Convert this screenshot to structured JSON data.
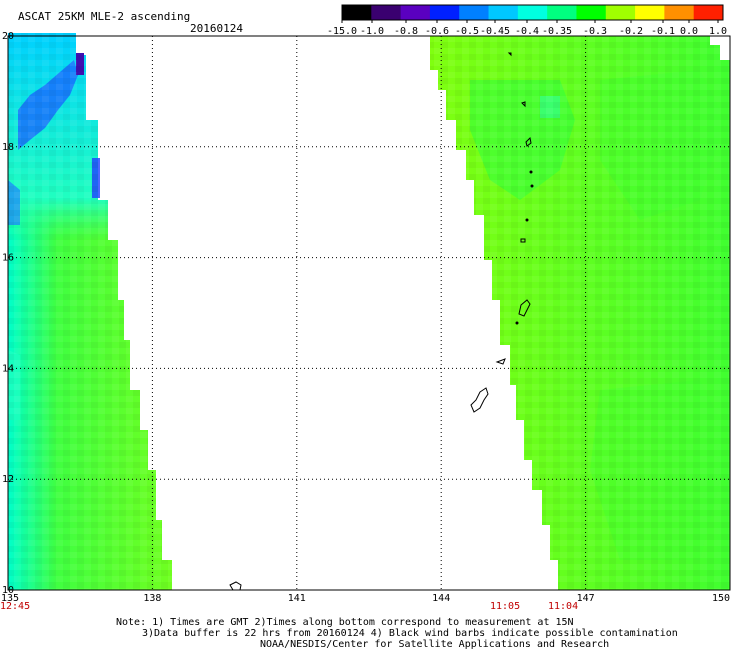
{
  "title": "ASCAT 25KM MLE-2 ascending",
  "date": "20160124",
  "colorbar": {
    "labels": [
      "-15.0",
      "-1.0",
      "-0.8",
      "-0.6",
      "-0.5",
      "-0.45",
      "-0.4",
      "-0.35",
      "-0.3",
      "-0.2",
      "-0.1",
      "0.0",
      "1.0"
    ],
    "colors": [
      "#000000",
      "#3a0070",
      "#5a00c0",
      "#0020ff",
      "#0080ff",
      "#00c8ff",
      "#00ffe0",
      "#00ff80",
      "#00ff00",
      "#a0ff00",
      "#ffff00",
      "#ff9000",
      "#ff2000"
    ]
  },
  "axes": {
    "lon_min": 135,
    "lon_max": 150,
    "lat_min": 10,
    "lat_max": 20,
    "x_ticks": [
      "135",
      "138",
      "141",
      "144",
      "147",
      "150"
    ],
    "y_ticks": [
      "20",
      "18",
      "16",
      "14",
      "12",
      "10"
    ]
  },
  "swaths": {
    "west": {
      "time": "12:45"
    },
    "east": {
      "time1": "11:05",
      "time2": "11:04"
    }
  },
  "notes": {
    "line1": "Note: 1) Times are GMT 2)Times along bottom correspond to measurement at 15N",
    "line2": "3)Data buffer is 22 hrs from 20160124 4) Black wind barbs indicate possible contamination",
    "line3": "NOAA/NESDIS/Center for Satellite Applications and Research"
  }
}
